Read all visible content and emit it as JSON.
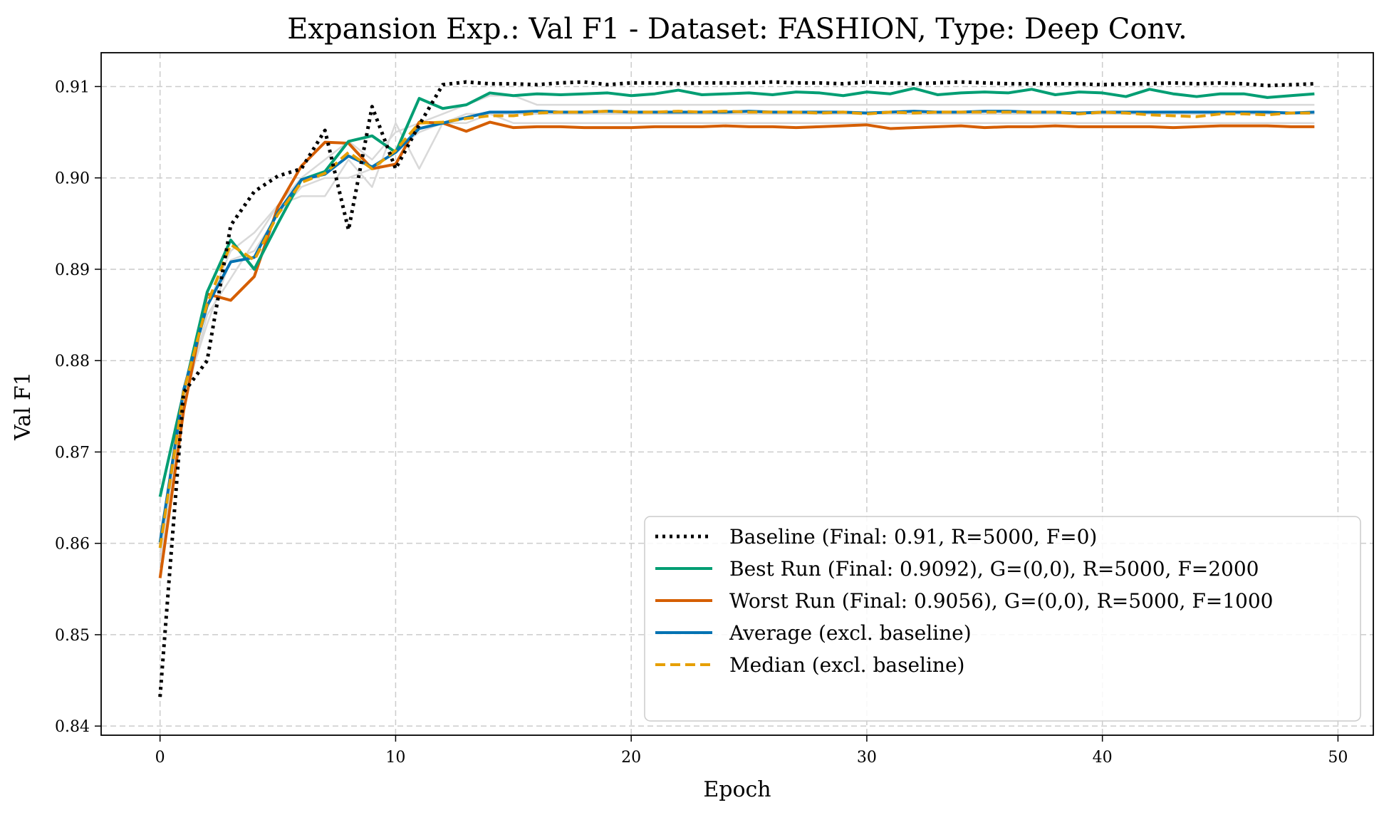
{
  "chart_data": {
    "type": "line",
    "title": "Expansion Exp.: Val F1 - Dataset: FASHION, Type: Deep Conv.",
    "xlabel": "Epoch",
    "ylabel": "Val F1",
    "xlim": [
      -2.5,
      51.5
    ],
    "ylim": [
      0.839,
      0.9137
    ],
    "xticks": [
      0,
      10,
      20,
      30,
      40,
      50
    ],
    "yticks": [
      0.84,
      0.85,
      0.86,
      0.87,
      0.88,
      0.89,
      0.9,
      0.91
    ],
    "xtick_labels": [
      "0",
      "10",
      "20",
      "30",
      "40",
      "50"
    ],
    "ytick_labels": [
      "0.84",
      "0.85",
      "0.86",
      "0.87",
      "0.88",
      "0.89",
      "0.90",
      "0.91"
    ],
    "grid": true,
    "legend_position": "lower-right",
    "background_series_color": "#d9d9d9",
    "background_series": [
      [
        0.859,
        0.877,
        0.886,
        0.892,
        0.894,
        0.897,
        0.9,
        0.902,
        0.904,
        0.902,
        0.905,
        0.906,
        0.907,
        0.908,
        0.909,
        0.909,
        0.908,
        0.908,
        0.908,
        0.908,
        0.908,
        0.908,
        0.908,
        0.908,
        0.908,
        0.908,
        0.908,
        0.908,
        0.908,
        0.908,
        0.908,
        0.908,
        0.908,
        0.908,
        0.908,
        0.908,
        0.908,
        0.908,
        0.908,
        0.908,
        0.908,
        0.908,
        0.908,
        0.908,
        0.908,
        0.908,
        0.908,
        0.908,
        0.908,
        0.908
      ],
      [
        0.861,
        0.875,
        0.885,
        0.889,
        0.893,
        0.897,
        0.898,
        0.898,
        0.902,
        0.899,
        0.906,
        0.901,
        0.906,
        0.907,
        0.907,
        0.907,
        0.907,
        0.907,
        0.907,
        0.907,
        0.907,
        0.907,
        0.907,
        0.907,
        0.907,
        0.907,
        0.907,
        0.907,
        0.907,
        0.907,
        0.907,
        0.907,
        0.907,
        0.907,
        0.907,
        0.907,
        0.907,
        0.907,
        0.907,
        0.907,
        0.907,
        0.907,
        0.907,
        0.907,
        0.907,
        0.907,
        0.907,
        0.907,
        0.907,
        0.907
      ],
      [
        0.858,
        0.876,
        0.884,
        0.891,
        0.892,
        0.896,
        0.899,
        0.9,
        0.9,
        0.901,
        0.903,
        0.905,
        0.906,
        0.906,
        0.907,
        0.906,
        0.906,
        0.906,
        0.906,
        0.906,
        0.906,
        0.906,
        0.906,
        0.906,
        0.906,
        0.906,
        0.906,
        0.906,
        0.906,
        0.906,
        0.906,
        0.906,
        0.906,
        0.906,
        0.906,
        0.906,
        0.906,
        0.906,
        0.906,
        0.906,
        0.906,
        0.906,
        0.906,
        0.906,
        0.906,
        0.906,
        0.906,
        0.906,
        0.906,
        0.906
      ]
    ],
    "series": [
      {
        "name": "Baseline (Final: 0.91, R=5000, F=0)",
        "color": "#000000",
        "style": "dotted",
        "values": [
          0.8432,
          0.8765,
          0.88,
          0.8948,
          0.8985,
          0.9002,
          0.901,
          0.9052,
          0.8943,
          0.9078,
          0.901,
          0.9058,
          0.9102,
          0.9105,
          0.9103,
          0.9103,
          0.9102,
          0.9104,
          0.9105,
          0.9102,
          0.9104,
          0.9104,
          0.9103,
          0.9104,
          0.9104,
          0.9104,
          0.9105,
          0.9104,
          0.9104,
          0.9103,
          0.9105,
          0.9104,
          0.9103,
          0.9104,
          0.9105,
          0.9104,
          0.9103,
          0.9103,
          0.9103,
          0.9103,
          0.9102,
          0.9103,
          0.9103,
          0.9104,
          0.9103,
          0.9104,
          0.9103,
          0.9101,
          0.9102,
          0.9103
        ]
      },
      {
        "name": "Best Run (Final: 0.9092), G=(0,0), R=5000, F=2000",
        "color": "#009e73",
        "style": "solid",
        "values": [
          0.8651,
          0.8765,
          0.8875,
          0.8932,
          0.89,
          0.895,
          0.8998,
          0.9007,
          0.904,
          0.9046,
          0.9028,
          0.9087,
          0.9076,
          0.908,
          0.9093,
          0.909,
          0.9092,
          0.9091,
          0.9092,
          0.9093,
          0.909,
          0.9092,
          0.9096,
          0.9091,
          0.9092,
          0.9093,
          0.9091,
          0.9094,
          0.9093,
          0.909,
          0.9094,
          0.9092,
          0.9098,
          0.9091,
          0.9093,
          0.9094,
          0.9093,
          0.9097,
          0.9091,
          0.9094,
          0.9093,
          0.9089,
          0.9097,
          0.9092,
          0.9089,
          0.9092,
          0.9092,
          0.9088,
          0.909,
          0.9092
        ]
      },
      {
        "name": "Worst Run (Final: 0.9056), G=(0,0), R=5000, F=1000",
        "color": "#d55e00",
        "style": "solid",
        "values": [
          0.8562,
          0.8745,
          0.8873,
          0.8866,
          0.8892,
          0.8968,
          0.9013,
          0.9039,
          0.9038,
          0.901,
          0.9015,
          0.9061,
          0.906,
          0.9051,
          0.9061,
          0.9055,
          0.9056,
          0.9056,
          0.9055,
          0.9055,
          0.9055,
          0.9056,
          0.9056,
          0.9056,
          0.9057,
          0.9056,
          0.9056,
          0.9055,
          0.9056,
          0.9057,
          0.9058,
          0.9054,
          0.9055,
          0.9056,
          0.9057,
          0.9055,
          0.9056,
          0.9056,
          0.9057,
          0.9056,
          0.9056,
          0.9056,
          0.9056,
          0.9055,
          0.9056,
          0.9057,
          0.9057,
          0.9057,
          0.9056,
          0.9056
        ]
      },
      {
        "name": "Average (excl. baseline)",
        "color": "#0072b2",
        "style": "solid",
        "values": [
          0.8601,
          0.8768,
          0.886,
          0.8908,
          0.8913,
          0.8962,
          0.8998,
          0.9004,
          0.9024,
          0.9012,
          0.9028,
          0.9054,
          0.906,
          0.9066,
          0.9072,
          0.9072,
          0.9073,
          0.9072,
          0.9072,
          0.9073,
          0.9072,
          0.9072,
          0.9072,
          0.9072,
          0.9072,
          0.9073,
          0.9072,
          0.9072,
          0.9072,
          0.9072,
          0.9071,
          0.9072,
          0.9073,
          0.9072,
          0.9072,
          0.9073,
          0.9073,
          0.9072,
          0.9072,
          0.9071,
          0.9072,
          0.9072,
          0.9072,
          0.9072,
          0.9072,
          0.9072,
          0.9072,
          0.9072,
          0.9071,
          0.9072
        ]
      },
      {
        "name": "Median (excl. baseline)",
        "color": "#e69f00",
        "style": "dashed",
        "values": [
          0.8595,
          0.8766,
          0.8862,
          0.8927,
          0.891,
          0.896,
          0.8995,
          0.9005,
          0.9028,
          0.901,
          0.903,
          0.906,
          0.9061,
          0.9065,
          0.9068,
          0.9068,
          0.9071,
          0.9072,
          0.9072,
          0.9073,
          0.9072,
          0.9072,
          0.9073,
          0.9072,
          0.9073,
          0.9072,
          0.9072,
          0.9072,
          0.9071,
          0.9072,
          0.907,
          0.9072,
          0.9071,
          0.9072,
          0.9072,
          0.9072,
          0.9072,
          0.9072,
          0.9072,
          0.907,
          0.9072,
          0.9071,
          0.9069,
          0.9068,
          0.9067,
          0.907,
          0.907,
          0.9069,
          0.9071,
          0.9071
        ]
      }
    ]
  }
}
